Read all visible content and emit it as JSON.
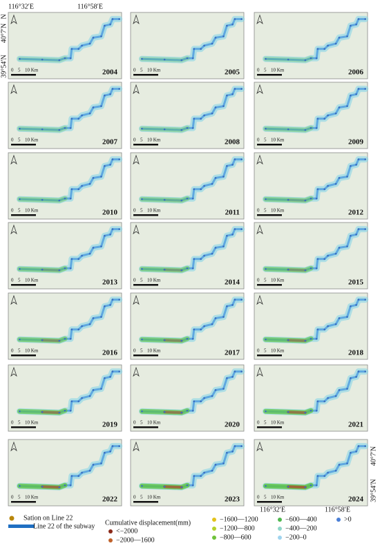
{
  "coordinates": {
    "top_left": "116°32′E",
    "top_right": "116°58′E",
    "left_top": "40°7′N",
    "left_bottom": "39°54′N",
    "bottom_left": "116°32′E",
    "bottom_right": "116°58′E",
    "right_top": "40°7′N",
    "right_bottom": "39°54′N"
  },
  "north": "N",
  "scale_bar": [
    "0",
    "5",
    "10 Km"
  ],
  "panels": [
    "2004",
    "2005",
    "2006",
    "2007",
    "2008",
    "2009",
    "2010",
    "2011",
    "2012",
    "2013",
    "2014",
    "2015",
    "2016",
    "2017",
    "2018",
    "2019",
    "2020",
    "2021",
    "2022",
    "2023",
    "2024"
  ],
  "legend": {
    "station": "Sation on Line 22",
    "line": "Line 22 of the subway",
    "title": "Cumulative displacement(mm)",
    "classes": [
      {
        "label": "<−2000",
        "color": "#8b2a1a"
      },
      {
        "label": "−2000—1600",
        "color": "#c0622b"
      },
      {
        "label": "−1600—1200",
        "color": "#e3c21a"
      },
      {
        "label": "−1200—800",
        "color": "#b5d12a"
      },
      {
        "label": "−800—600",
        "color": "#6fc23a"
      },
      {
        "label": "−600—400",
        "color": "#4fb84f"
      },
      {
        "label": "−400—200",
        "color": "#8fd6c8"
      },
      {
        "label": "−200–0",
        "color": "#9fd4ef"
      },
      {
        "label": ">0",
        "color": "#4a7fd6"
      }
    ]
  }
}
